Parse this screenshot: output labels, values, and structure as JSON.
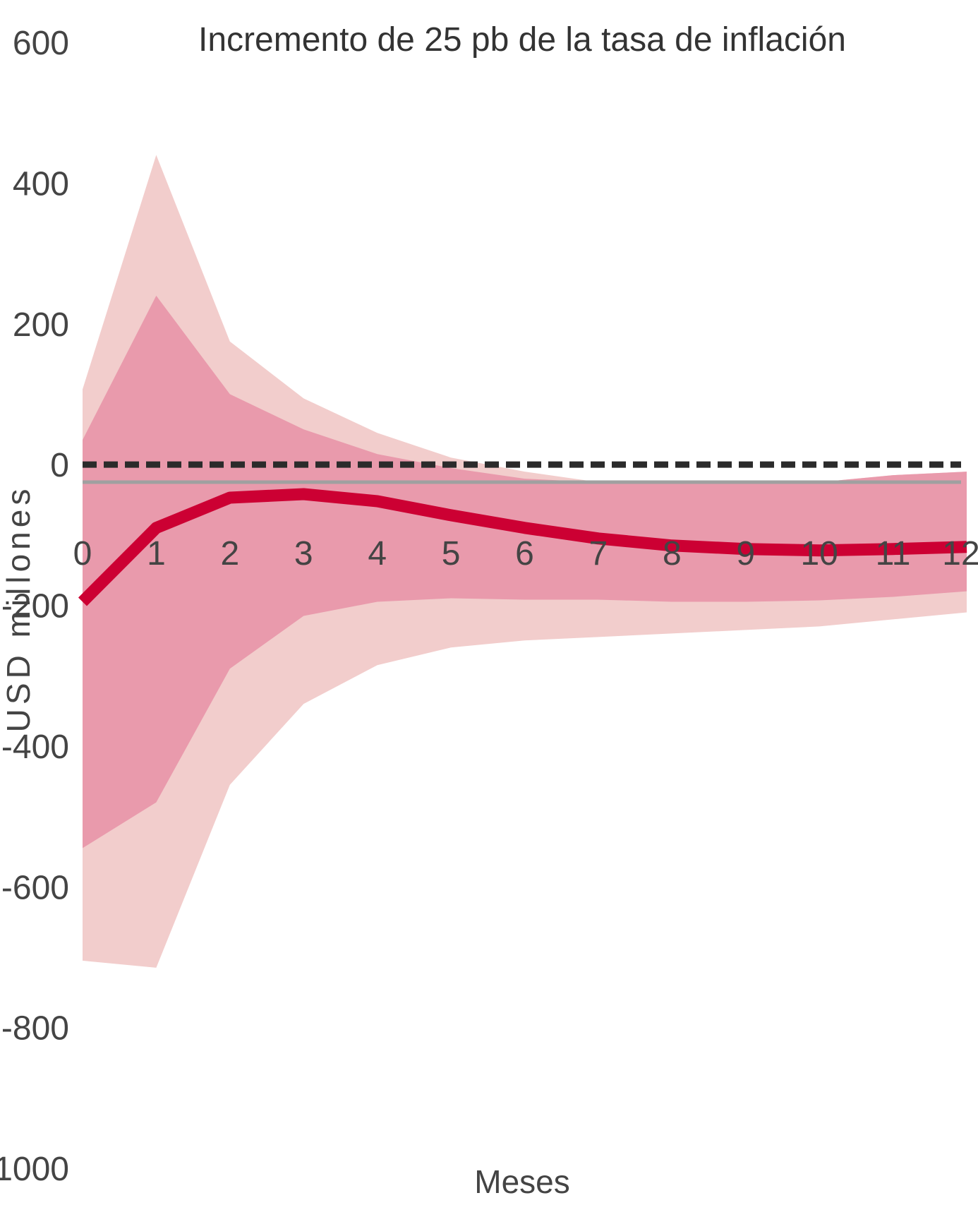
{
  "chart_data": {
    "type": "area",
    "title": "Incremento de 25 pb de la tasa de inflación",
    "xlabel": "Meses",
    "ylabel": "USD millones",
    "x": [
      0,
      1,
      2,
      3,
      4,
      5,
      6,
      7,
      8,
      9,
      10,
      11,
      12
    ],
    "xlim": [
      0,
      12
    ],
    "ylim": [
      -1000,
      600
    ],
    "yticks": [
      600,
      400,
      200,
      0,
      -200,
      -400,
      -600,
      -800,
      -1000
    ],
    "xticks": [
      0,
      1,
      2,
      3,
      4,
      5,
      6,
      7,
      8,
      9,
      10,
      11,
      12
    ],
    "grid": false,
    "reference_lines": [
      {
        "style": "dashed",
        "value": 0,
        "color": "#2b2b2b"
      },
      {
        "style": "solid",
        "value": -25,
        "color": "#a0a0a0"
      }
    ],
    "bands": [
      {
        "level": "outer",
        "color": "#f2cdcc",
        "upper": [
          107,
          440,
          175,
          94,
          45,
          10,
          -10,
          -25,
          -25,
          -25,
          -25,
          -15,
          -10
        ],
        "lower": [
          -705,
          -715,
          -455,
          -340,
          -285,
          -260,
          -250,
          -245,
          -240,
          -235,
          -230,
          -220,
          -210
        ]
      },
      {
        "level": "inner",
        "color": "#e99aac",
        "upper": [
          35,
          240,
          100,
          50,
          15,
          -5,
          -20,
          -25,
          -25,
          -25,
          -25,
          -15,
          -10
        ],
        "lower": [
          -545,
          -480,
          -290,
          -215,
          -195,
          -190,
          -192,
          -192,
          -195,
          -195,
          -193,
          -188,
          -180
        ]
      }
    ],
    "series": [
      {
        "color": "#cc0033",
        "values": [
          -195,
          -90,
          -47,
          -42,
          -52,
          -72,
          -90,
          -105,
          -115,
          -120,
          -122,
          -120,
          -117
        ]
      }
    ]
  }
}
